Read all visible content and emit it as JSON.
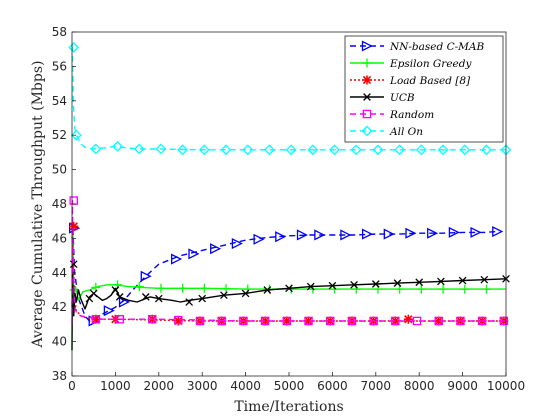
{
  "chart_data": {
    "type": "line",
    "title": "",
    "xlabel": "Time/Iterations",
    "ylabel": "Average Cumulative Throughput (Mbps)",
    "xlim": [
      0,
      10000
    ],
    "ylim": [
      38,
      58
    ],
    "xticks": [
      0,
      1000,
      2000,
      3000,
      4000,
      5000,
      6000,
      7000,
      8000,
      9000,
      10000
    ],
    "yticks": [
      38,
      40,
      42,
      44,
      46,
      48,
      50,
      52,
      54,
      56,
      58
    ],
    "grid": false,
    "legend_position": "top-right",
    "series": [
      {
        "name": "NN-based C-MAB",
        "color": "#0000ff",
        "line_style": "dashed",
        "marker": "triangle-right",
        "x": [
          0,
          20,
          60,
          150,
          300,
          400,
          500,
          700,
          1000,
          1200,
          1400,
          1700,
          2000,
          2500,
          3000,
          3500,
          4000,
          4500,
          5000,
          5500,
          6000,
          6500,
          7000,
          7500,
          8000,
          8500,
          9000,
          9500,
          9800
        ],
        "y": [
          42.0,
          46.6,
          44.0,
          42.5,
          41.5,
          41.2,
          41.3,
          41.6,
          42.0,
          42.4,
          43.0,
          43.8,
          44.5,
          45.0,
          45.3,
          45.6,
          45.9,
          46.05,
          46.15,
          46.2,
          46.2,
          46.2,
          46.25,
          46.25,
          46.3,
          46.3,
          46.35,
          46.35,
          46.4
        ],
        "marker_x": [
          50,
          500,
          850,
          1200,
          1700,
          2400,
          2800,
          3300,
          3800,
          4300,
          4800,
          5300,
          5700,
          6300,
          6800,
          7300,
          7800,
          8300,
          8800,
          9300,
          9800
        ],
        "marker_y": [
          46.6,
          41.2,
          41.8,
          42.3,
          43.8,
          44.8,
          45.1,
          45.4,
          45.7,
          45.95,
          46.1,
          46.2,
          46.2,
          46.2,
          46.25,
          46.25,
          46.3,
          46.3,
          46.35,
          46.35,
          46.4
        ]
      },
      {
        "name": "Epsilon Greedy",
        "color": "#00ff00",
        "line_style": "solid",
        "marker": "plus",
        "x": [
          0,
          15,
          40,
          80,
          150,
          250,
          400,
          600,
          800,
          1000,
          1300,
          1600,
          2000,
          2500,
          3000,
          3500,
          4000,
          5000,
          6000,
          7000,
          8000,
          9000,
          10000
        ],
        "y": [
          39.5,
          46.5,
          42.5,
          43.2,
          42.4,
          42.9,
          43.0,
          43.2,
          43.3,
          43.3,
          43.2,
          43.15,
          43.1,
          43.1,
          43.1,
          43.08,
          43.05,
          43.05,
          43.05,
          43.05,
          43.05,
          43.05,
          43.05
        ],
        "marker_x": [
          50,
          550,
          1050,
          1550,
          2050,
          2550,
          3050,
          3550,
          4050,
          4550,
          5050,
          5550,
          6050,
          6550,
          7050,
          7550,
          8050,
          8550,
          9050,
          9550
        ],
        "marker_y": [
          43.0,
          43.15,
          43.3,
          43.2,
          43.1,
          43.1,
          43.1,
          43.08,
          43.05,
          43.05,
          43.05,
          43.05,
          43.05,
          43.05,
          43.05,
          43.05,
          43.05,
          43.05,
          43.05,
          43.05
        ]
      },
      {
        "name": "Load Based [8]",
        "color": "#ff0000",
        "line_style": "dotted",
        "marker": "asterisk",
        "x": [
          0,
          10,
          30,
          60,
          100,
          200,
          300,
          500,
          1000,
          2000,
          3000,
          4000,
          5000,
          6000,
          7000,
          8000,
          9000,
          10000
        ],
        "y": [
          46.0,
          46.5,
          45.0,
          42.5,
          41.8,
          41.5,
          41.4,
          41.3,
          41.3,
          41.25,
          41.2,
          41.2,
          41.2,
          41.2,
          41.2,
          41.2,
          41.2,
          41.2
        ],
        "marker_x": [
          40,
          550,
          1000,
          1850,
          2450,
          2950,
          3450,
          3950,
          4450,
          4950,
          5450,
          5950,
          6450,
          6950,
          7450,
          7750,
          8450,
          8950,
          9450,
          9950
        ],
        "marker_y": [
          46.7,
          41.3,
          41.3,
          41.3,
          41.2,
          41.2,
          41.2,
          41.2,
          41.2,
          41.2,
          41.2,
          41.2,
          41.2,
          41.2,
          41.2,
          41.3,
          41.2,
          41.2,
          41.2,
          41.2
        ]
      },
      {
        "name": "UCB",
        "color": "#000000",
        "line_style": "solid",
        "marker": "x",
        "x": [
          0,
          10,
          20,
          40,
          70,
          100,
          150,
          200,
          300,
          400,
          500,
          600,
          700,
          800,
          900,
          1000,
          1100,
          1300,
          1500,
          1800,
          2000,
          2300,
          2500,
          2700,
          3000,
          3500,
          4000,
          4500,
          5000,
          5500,
          6000,
          6500,
          7000,
          7500,
          8000,
          8500,
          9000,
          9500,
          10000
        ],
        "y": [
          39.5,
          44.5,
          42.5,
          41.5,
          42.8,
          42.3,
          43.0,
          42.5,
          41.9,
          42.6,
          42.8,
          42.6,
          42.4,
          42.5,
          42.7,
          43.1,
          42.6,
          42.4,
          42.3,
          42.6,
          42.5,
          42.4,
          42.3,
          42.4,
          42.5,
          42.7,
          42.8,
          43.0,
          43.1,
          43.2,
          43.25,
          43.3,
          43.35,
          43.4,
          43.45,
          43.5,
          43.55,
          43.6,
          43.65
        ],
        "marker_x": [
          40,
          400,
          500,
          1000,
          1100,
          1700,
          2000,
          2700,
          3000,
          3500,
          4000,
          4500,
          5000,
          5500,
          6000,
          6500,
          7000,
          7500,
          8000,
          8500,
          9000,
          9500,
          10000
        ],
        "marker_y": [
          44.5,
          42.5,
          42.8,
          43.0,
          42.6,
          42.6,
          42.5,
          42.3,
          42.5,
          42.7,
          42.8,
          43.0,
          43.1,
          43.2,
          43.25,
          43.3,
          43.35,
          43.4,
          43.45,
          43.5,
          43.55,
          43.6,
          43.65
        ]
      },
      {
        "name": "Random",
        "color": "#ff00ff",
        "line_style": "dashed",
        "marker": "square",
        "x": [
          0,
          10,
          30,
          60,
          100,
          200,
          400,
          700,
          1000,
          2000,
          3000,
          4000,
          5000,
          6000,
          7000,
          8000,
          9000,
          10000
        ],
        "y": [
          41.0,
          48.2,
          44.5,
          42.0,
          41.7,
          41.5,
          41.4,
          41.3,
          41.3,
          41.3,
          41.25,
          41.2,
          41.2,
          41.2,
          41.2,
          41.2,
          41.2,
          41.2
        ],
        "marker_x": [
          40,
          550,
          1100,
          1850,
          2450,
          2950,
          3450,
          3950,
          4450,
          4950,
          5450,
          5950,
          6450,
          6950,
          7450,
          7950,
          8450,
          8950,
          9450,
          9950
        ],
        "marker_y": [
          48.2,
          41.3,
          41.3,
          41.3,
          41.25,
          41.2,
          41.2,
          41.2,
          41.2,
          41.2,
          41.2,
          41.2,
          41.2,
          41.2,
          41.2,
          41.2,
          41.2,
          41.2,
          41.2,
          41.2
        ]
      },
      {
        "name": "All On",
        "color": "#00ffff",
        "line_style": "dashed",
        "marker": "diamond",
        "x": [
          0,
          10,
          30,
          60,
          100,
          200,
          300,
          500,
          700,
          1000,
          1500,
          2000,
          3000,
          4000,
          5000,
          6000,
          7000,
          8000,
          9000,
          10000
        ],
        "y": [
          57.2,
          57.0,
          54.0,
          52.5,
          52.0,
          51.5,
          51.3,
          51.2,
          51.25,
          51.35,
          51.2,
          51.2,
          51.15,
          51.15,
          51.15,
          51.15,
          51.15,
          51.15,
          51.15,
          51.15
        ],
        "marker_x": [
          40,
          100,
          550,
          1050,
          1550,
          2050,
          2550,
          3050,
          3550,
          4050,
          4550,
          5050,
          5550,
          6050,
          6550,
          7050,
          7550,
          8050,
          8550,
          9050,
          9550,
          10000
        ],
        "marker_y": [
          57.1,
          52.0,
          51.2,
          51.35,
          51.2,
          51.2,
          51.15,
          51.15,
          51.15,
          51.15,
          51.15,
          51.15,
          51.15,
          51.15,
          51.15,
          51.15,
          51.15,
          51.15,
          51.15,
          51.15,
          51.15,
          51.15
        ]
      }
    ]
  }
}
